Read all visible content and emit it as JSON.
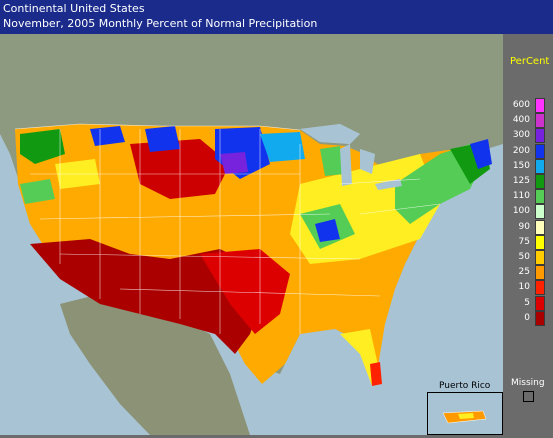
{
  "header": {
    "line1": "Continental United States",
    "line2": "November, 2005 Monthly Percent of Normal Precipitation"
  },
  "colors": {
    "header_bg": "#1a2b8c",
    "ocean": "#a8c4d4",
    "land": "#8e9a80",
    "legend_bg": "#6b6b6b"
  },
  "legend": {
    "title": "PerCent",
    "items": [
      {
        "label": "600",
        "color": "#ff33ff"
      },
      {
        "label": "400",
        "color": "#cc33cc"
      },
      {
        "label": "300",
        "color": "#7722dd"
      },
      {
        "label": "200",
        "color": "#1133ee"
      },
      {
        "label": "150",
        "color": "#11aaee"
      },
      {
        "label": "125",
        "color": "#119911"
      },
      {
        "label": "110",
        "color": "#55cc55"
      },
      {
        "label": "100",
        "color": "#ccffcc"
      },
      {
        "label": "90",
        "color": "#ffffbb"
      },
      {
        "label": "75",
        "color": "#ffff00"
      },
      {
        "label": "50",
        "color": "#ffcc00"
      },
      {
        "label": "25",
        "color": "#ff9900"
      },
      {
        "label": "10",
        "color": "#ff2200"
      },
      {
        "label": "5",
        "color": "#dd0000"
      },
      {
        "label": "0",
        "color": "#aa0000"
      }
    ],
    "missing_label": "Missing"
  },
  "inset": {
    "label": "Puerto Rico"
  }
}
